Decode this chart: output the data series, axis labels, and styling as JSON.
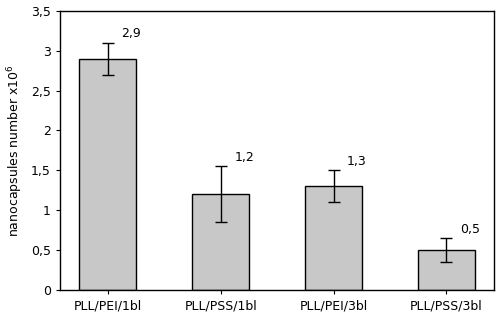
{
  "categories": [
    "PLL/PEI/1bl",
    "PLL/PSS/1bl",
    "PLL/PEI/3bl",
    "PLL/PSS/3bl"
  ],
  "values": [
    2.9,
    1.2,
    1.3,
    0.5
  ],
  "errors": [
    0.2,
    0.35,
    0.2,
    0.15
  ],
  "bar_color": "#c8c8c8",
  "bar_edgecolor": "#000000",
  "error_color": "#000000",
  "annotations": [
    "2,9",
    "1,2",
    "1,3",
    "0,5"
  ],
  "ylabel": "nanocapsules number x10$^6$",
  "ylim": [
    0,
    3.5
  ],
  "yticks": [
    0,
    0.5,
    1.0,
    1.5,
    2.0,
    2.5,
    3.0,
    3.5
  ],
  "ytick_labels": [
    "0",
    "0,5",
    "1",
    "1,5",
    "2",
    "2,5",
    "3",
    "3,5"
  ],
  "background_color": "#ffffff",
  "bar_width": 0.5,
  "annotation_fontsize": 9,
  "ylabel_fontsize": 9,
  "tick_fontsize": 9,
  "xlabel_fontsize": 9,
  "capsize": 4,
  "linewidth": 1.0,
  "figsize": [
    5.0,
    3.18
  ],
  "dpi": 100
}
